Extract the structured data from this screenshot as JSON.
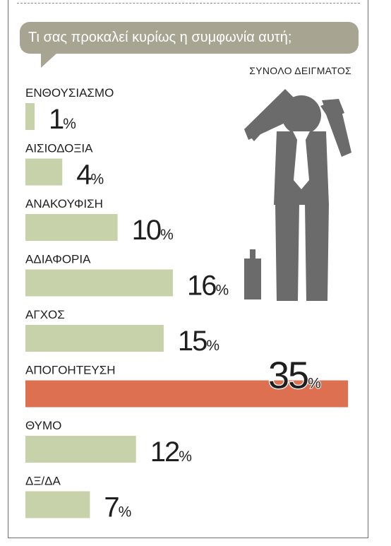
{
  "question": "Τι σας προκαλεί κυρίως η συμφωνία αυτή;",
  "subtitle": "ΣΥΝΟΛΟ ΔΕΙΓΜΑΤΟΣ",
  "colors": {
    "bar": "#c8d2aa",
    "highlight": "#dd7050",
    "bubble": "#a7a491",
    "figure": "#6b6b6b"
  },
  "chart_data": {
    "type": "bar",
    "orientation": "horizontal",
    "unit": "%",
    "categories": [
      "ΕΝΘΟΥΣΙΑΣΜΟ",
      "ΑΙΣΙΟΔΟΞΙΑ",
      "ΑΝΑΚΟΥΦΙΣΗ",
      "ΑΔΙΑΦΟΡΙΑ",
      "ΑΓΧΟΣ",
      "ΑΠΟΓΟΗΤΕΥΣΗ",
      "ΘΥΜΟ",
      "ΔΞ/ΔΑ"
    ],
    "values": [
      1,
      4,
      10,
      16,
      15,
      35,
      12,
      7
    ],
    "highlight": "ΑΠΟΓΟΗΤΕΥΣΗ",
    "grid": false
  },
  "figure_icon": "worried-man-icon",
  "bottle_icon": "bottle-icon"
}
